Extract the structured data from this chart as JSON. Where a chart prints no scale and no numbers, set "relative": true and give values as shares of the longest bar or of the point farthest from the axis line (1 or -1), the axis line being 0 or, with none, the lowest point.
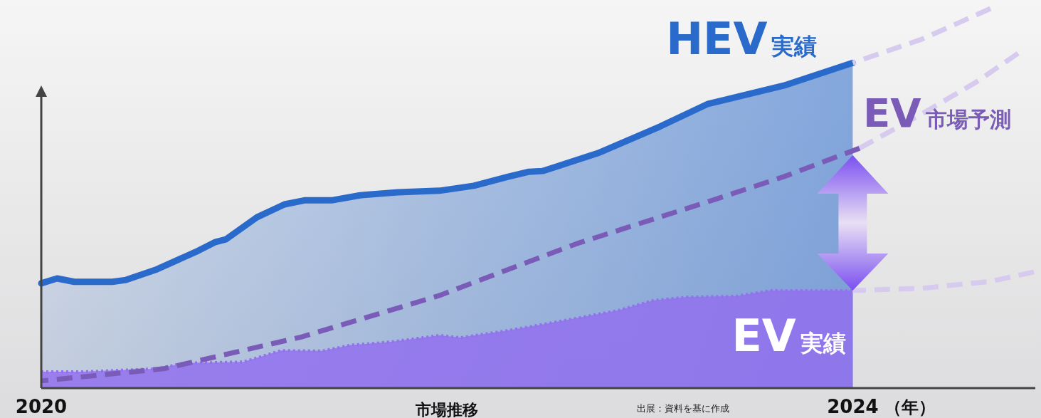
{
  "chart_data": {
    "type": "area",
    "relative": true,
    "xlabel": "市場推移",
    "xlim": [
      2020,
      2024.9
    ],
    "xticks": [
      2020,
      2024
    ],
    "marker": "none",
    "grid": false,
    "annotations": [
      "（年）",
      "出展：資料を基に作成"
    ],
    "series": [
      {
        "name": "HEV実績",
        "color": "#2a6acb",
        "line_style": "solid",
        "x": [
          2020,
          2020.078,
          2020.163,
          2020.35,
          2020.418,
          2020.57,
          2020.774,
          2020.859,
          2020.91,
          2021.063,
          2021.199,
          2021.301,
          2021.436,
          2021.572,
          2021.759,
          2021.963,
          2022.132,
          2022.302,
          2022.404,
          2022.472,
          2022.744,
          2023.049,
          2023.287,
          2023.66,
          2024
        ],
        "values": [
          0.276,
          0.289,
          0.28,
          0.28,
          0.285,
          0.313,
          0.362,
          0.385,
          0.392,
          0.45,
          0.484,
          0.495,
          0.495,
          0.508,
          0.516,
          0.52,
          0.533,
          0.557,
          0.57,
          0.572,
          0.619,
          0.689,
          0.749,
          0.797,
          0.857
        ]
      },
      {
        "name": "EV実績",
        "color": "#9270ee",
        "line_style": "dotted",
        "x": [
          2020,
          2020.197,
          2020.57,
          2020.706,
          2020.995,
          2021.182,
          2021.385,
          2021.521,
          2021.725,
          2021.963,
          2022.065,
          2022.302,
          2022.506,
          2022.846,
          2023.015,
          2023.185,
          2023.423,
          2023.593,
          2024
        ],
        "values": [
          0.043,
          0.043,
          0.051,
          0.066,
          0.069,
          0.099,
          0.098,
          0.113,
          0.122,
          0.139,
          0.133,
          0.152,
          0.171,
          0.205,
          0.231,
          0.24,
          0.242,
          0.257,
          0.257
        ]
      },
      {
        "name": "EV市場予測",
        "type": "line",
        "color": "#7a5cb8",
        "line_style": "dashed",
        "x": [
          2020,
          2020.604,
          2021.284,
          2021.963,
          2022.642,
          2023.321,
          2023.66,
          2024.034
        ],
        "values": [
          0.019,
          0.051,
          0.135,
          0.244,
          0.381,
          0.497,
          0.557,
          0.632
        ]
      },
      {
        "type": "line",
        "color": "#d6cbef",
        "line_style": "dashed",
        "x": [
          2024,
          2024.34,
          2024.679
        ],
        "values": [
          0.857,
          0.919,
          1
        ]
      },
      {
        "type": "line",
        "color": "#d6cbef",
        "line_style": "dashed",
        "x": [
          2024.034,
          2024.34,
          2024.611,
          2024.815
        ],
        "values": [
          0.632,
          0.722,
          0.807,
          0.882
        ]
      },
      {
        "type": "line",
        "color": "#d6cbef",
        "line_style": "dashed",
        "x": [
          2024,
          2024.34,
          2024.679,
          2024.893
        ],
        "values": [
          0.257,
          0.263,
          0.281,
          0.306
        ]
      }
    ]
  }
}
